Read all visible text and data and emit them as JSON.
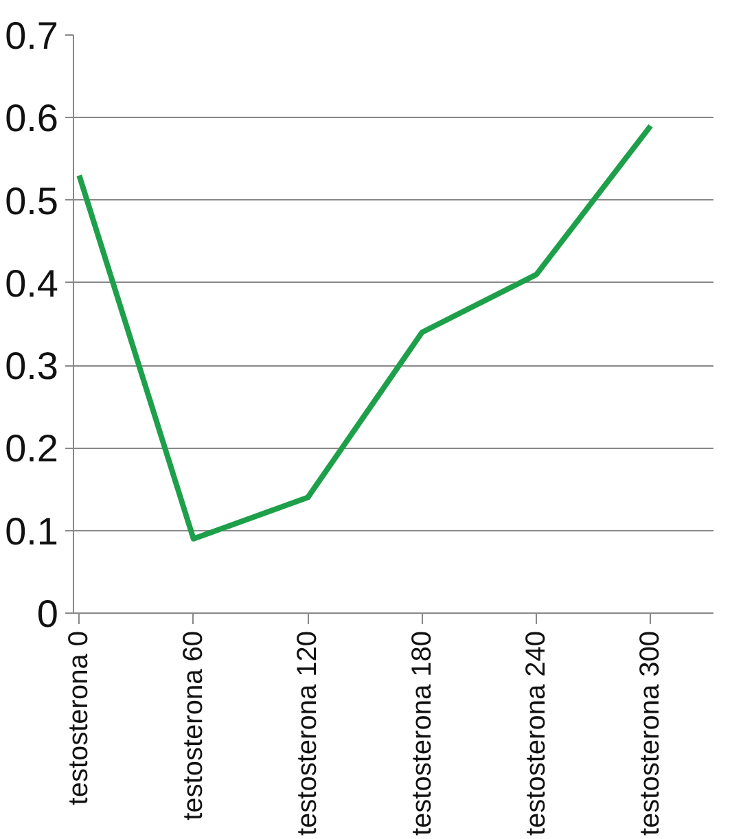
{
  "chart_data": {
    "type": "line",
    "categories": [
      "testosterona 0",
      "testosterona 60",
      "testosterona 120",
      "testosterona 180",
      "testosterona 240",
      "testosterona 300"
    ],
    "series": [
      {
        "color": "#1ea04a",
        "values": [
          0.53,
          0.09,
          0.14,
          0.34,
          0.41,
          0.59
        ]
      }
    ],
    "ylim": [
      0,
      0.7
    ],
    "yticks": [
      0,
      0.1,
      0.2,
      0.3,
      0.4,
      0.5,
      0.6,
      0.7
    ],
    "grid": "y",
    "marker": "none",
    "line_style": "solid"
  }
}
